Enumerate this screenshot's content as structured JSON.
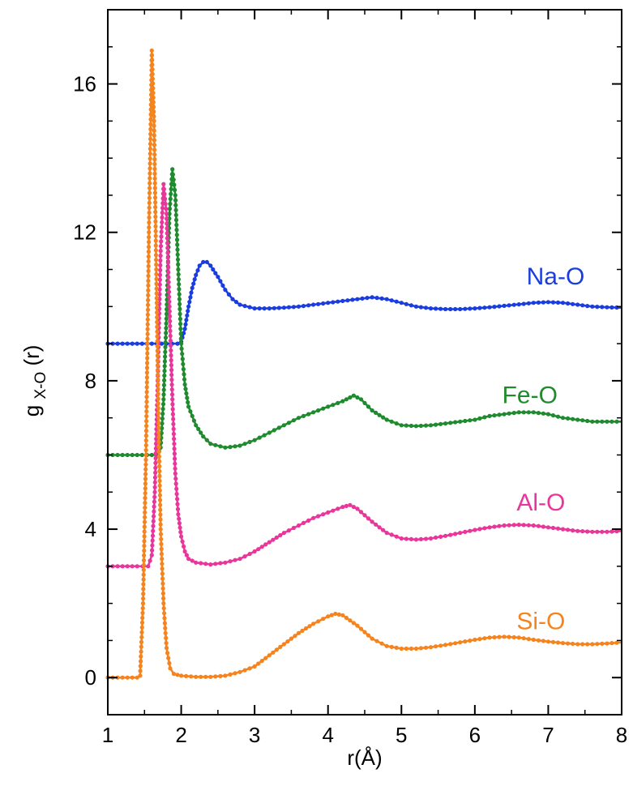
{
  "chart_data": {
    "type": "line",
    "xlabel": "r(Å)",
    "ylabel_main": "g",
    "ylabel_sub": "X-O",
    "ylabel_suffix": "(r)",
    "xlim": [
      1,
      8
    ],
    "ylim": [
      -1,
      18
    ],
    "x_ticks": [
      1,
      2,
      3,
      4,
      5,
      6,
      7,
      8
    ],
    "y_ticks": [
      0,
      4,
      8,
      12,
      16
    ],
    "grid": false,
    "legend": "inline labels at right",
    "series": [
      {
        "name": "Na-O",
        "color": "#1a3de0",
        "offset": 9,
        "points": [
          [
            1.0,
            9.0
          ],
          [
            1.2,
            9.0
          ],
          [
            1.4,
            9.0
          ],
          [
            1.6,
            9.0
          ],
          [
            1.8,
            9.0
          ],
          [
            1.95,
            9.0
          ],
          [
            2.0,
            9.05
          ],
          [
            2.05,
            9.4
          ],
          [
            2.1,
            10.0
          ],
          [
            2.15,
            10.5
          ],
          [
            2.2,
            10.85
          ],
          [
            2.25,
            11.1
          ],
          [
            2.3,
            11.2
          ],
          [
            2.35,
            11.2
          ],
          [
            2.4,
            11.1
          ],
          [
            2.5,
            10.8
          ],
          [
            2.6,
            10.45
          ],
          [
            2.7,
            10.2
          ],
          [
            2.8,
            10.05
          ],
          [
            3.0,
            9.95
          ],
          [
            3.2,
            9.95
          ],
          [
            3.4,
            9.97
          ],
          [
            3.6,
            10.0
          ],
          [
            3.8,
            10.05
          ],
          [
            4.0,
            10.1
          ],
          [
            4.2,
            10.15
          ],
          [
            4.4,
            10.2
          ],
          [
            4.6,
            10.25
          ],
          [
            4.8,
            10.2
          ],
          [
            5.0,
            10.1
          ],
          [
            5.2,
            10.0
          ],
          [
            5.4,
            9.95
          ],
          [
            5.6,
            9.93
          ],
          [
            5.8,
            9.93
          ],
          [
            6.0,
            9.95
          ],
          [
            6.2,
            9.98
          ],
          [
            6.4,
            10.02
          ],
          [
            6.6,
            10.06
          ],
          [
            6.8,
            10.1
          ],
          [
            7.0,
            10.12
          ],
          [
            7.2,
            10.1
          ],
          [
            7.4,
            10.05
          ],
          [
            7.6,
            10.0
          ],
          [
            7.8,
            9.98
          ],
          [
            8.0,
            9.97
          ]
        ]
      },
      {
        "name": "Fe-O",
        "color": "#1f8a2e",
        "offset": 6,
        "points": [
          [
            1.0,
            6.0
          ],
          [
            1.2,
            6.0
          ],
          [
            1.4,
            6.0
          ],
          [
            1.6,
            6.0
          ],
          [
            1.68,
            6.0
          ],
          [
            1.72,
            6.2
          ],
          [
            1.76,
            7.5
          ],
          [
            1.8,
            9.8
          ],
          [
            1.84,
            12.5
          ],
          [
            1.88,
            13.7
          ],
          [
            1.92,
            13.0
          ],
          [
            1.96,
            11.0
          ],
          [
            2.0,
            9.0
          ],
          [
            2.05,
            7.9
          ],
          [
            2.1,
            7.3
          ],
          [
            2.2,
            6.8
          ],
          [
            2.3,
            6.5
          ],
          [
            2.4,
            6.3
          ],
          [
            2.6,
            6.2
          ],
          [
            2.8,
            6.25
          ],
          [
            3.0,
            6.4
          ],
          [
            3.2,
            6.6
          ],
          [
            3.4,
            6.8
          ],
          [
            3.6,
            7.0
          ],
          [
            3.8,
            7.15
          ],
          [
            4.0,
            7.3
          ],
          [
            4.2,
            7.45
          ],
          [
            4.35,
            7.6
          ],
          [
            4.45,
            7.5
          ],
          [
            4.6,
            7.2
          ],
          [
            4.8,
            6.95
          ],
          [
            5.0,
            6.8
          ],
          [
            5.2,
            6.78
          ],
          [
            5.4,
            6.8
          ],
          [
            5.6,
            6.85
          ],
          [
            5.8,
            6.9
          ],
          [
            6.0,
            6.95
          ],
          [
            6.2,
            7.05
          ],
          [
            6.4,
            7.1
          ],
          [
            6.6,
            7.15
          ],
          [
            6.8,
            7.15
          ],
          [
            7.0,
            7.1
          ],
          [
            7.2,
            7.0
          ],
          [
            7.4,
            6.95
          ],
          [
            7.6,
            6.9
          ],
          [
            7.8,
            6.9
          ],
          [
            8.0,
            6.9
          ]
        ]
      },
      {
        "name": "Al-O",
        "color": "#e8369b",
        "offset": 3,
        "points": [
          [
            1.0,
            3.0
          ],
          [
            1.2,
            3.0
          ],
          [
            1.4,
            3.0
          ],
          [
            1.55,
            3.0
          ],
          [
            1.6,
            3.3
          ],
          [
            1.64,
            5.0
          ],
          [
            1.68,
            8.0
          ],
          [
            1.72,
            11.5
          ],
          [
            1.76,
            13.3
          ],
          [
            1.8,
            12.5
          ],
          [
            1.84,
            10.0
          ],
          [
            1.88,
            7.5
          ],
          [
            1.92,
            5.5
          ],
          [
            1.96,
            4.4
          ],
          [
            2.0,
            3.8
          ],
          [
            2.05,
            3.4
          ],
          [
            2.1,
            3.2
          ],
          [
            2.2,
            3.1
          ],
          [
            2.4,
            3.05
          ],
          [
            2.6,
            3.1
          ],
          [
            2.8,
            3.2
          ],
          [
            3.0,
            3.4
          ],
          [
            3.2,
            3.65
          ],
          [
            3.4,
            3.9
          ],
          [
            3.6,
            4.1
          ],
          [
            3.8,
            4.3
          ],
          [
            4.0,
            4.45
          ],
          [
            4.2,
            4.6
          ],
          [
            4.3,
            4.65
          ],
          [
            4.4,
            4.55
          ],
          [
            4.6,
            4.2
          ],
          [
            4.8,
            3.9
          ],
          [
            5.0,
            3.75
          ],
          [
            5.2,
            3.72
          ],
          [
            5.4,
            3.75
          ],
          [
            5.6,
            3.82
          ],
          [
            5.8,
            3.9
          ],
          [
            6.0,
            3.98
          ],
          [
            6.2,
            4.05
          ],
          [
            6.4,
            4.1
          ],
          [
            6.6,
            4.12
          ],
          [
            6.8,
            4.1
          ],
          [
            7.0,
            4.05
          ],
          [
            7.2,
            4.0
          ],
          [
            7.4,
            3.95
          ],
          [
            7.6,
            3.93
          ],
          [
            7.8,
            3.93
          ],
          [
            8.0,
            3.95
          ]
        ]
      },
      {
        "name": "Si-O",
        "color": "#f5841f",
        "offset": 0,
        "points": [
          [
            1.0,
            0.0
          ],
          [
            1.2,
            0.0
          ],
          [
            1.4,
            0.0
          ],
          [
            1.44,
            0.05
          ],
          [
            1.48,
            2.0
          ],
          [
            1.52,
            6.0
          ],
          [
            1.56,
            12.0
          ],
          [
            1.6,
            16.9
          ],
          [
            1.63,
            15.0
          ],
          [
            1.66,
            11.0
          ],
          [
            1.69,
            7.0
          ],
          [
            1.72,
            4.0
          ],
          [
            1.76,
            2.0
          ],
          [
            1.8,
            0.8
          ],
          [
            1.85,
            0.25
          ],
          [
            1.9,
            0.1
          ],
          [
            2.0,
            0.05
          ],
          [
            2.2,
            0.02
          ],
          [
            2.4,
            0.02
          ],
          [
            2.6,
            0.05
          ],
          [
            2.8,
            0.15
          ],
          [
            3.0,
            0.3
          ],
          [
            3.2,
            0.6
          ],
          [
            3.4,
            0.9
          ],
          [
            3.6,
            1.2
          ],
          [
            3.8,
            1.45
          ],
          [
            4.0,
            1.65
          ],
          [
            4.1,
            1.72
          ],
          [
            4.2,
            1.68
          ],
          [
            4.4,
            1.4
          ],
          [
            4.6,
            1.05
          ],
          [
            4.8,
            0.85
          ],
          [
            5.0,
            0.78
          ],
          [
            5.2,
            0.78
          ],
          [
            5.4,
            0.82
          ],
          [
            5.6,
            0.88
          ],
          [
            5.8,
            0.95
          ],
          [
            6.0,
            1.02
          ],
          [
            6.2,
            1.08
          ],
          [
            6.4,
            1.1
          ],
          [
            6.6,
            1.08
          ],
          [
            6.8,
            1.02
          ],
          [
            7.0,
            0.97
          ],
          [
            7.2,
            0.93
          ],
          [
            7.4,
            0.9
          ],
          [
            7.6,
            0.9
          ],
          [
            7.8,
            0.92
          ],
          [
            8.0,
            0.95
          ]
        ]
      }
    ],
    "labels": [
      {
        "text": "Na-O",
        "x": 7.1,
        "y": 10.6
      },
      {
        "text": "Fe-O",
        "x": 6.75,
        "y": 7.4
      },
      {
        "text": "Al-O",
        "x": 6.9,
        "y": 4.5
      },
      {
        "text": "Si-O",
        "x": 6.9,
        "y": 1.3
      }
    ]
  }
}
